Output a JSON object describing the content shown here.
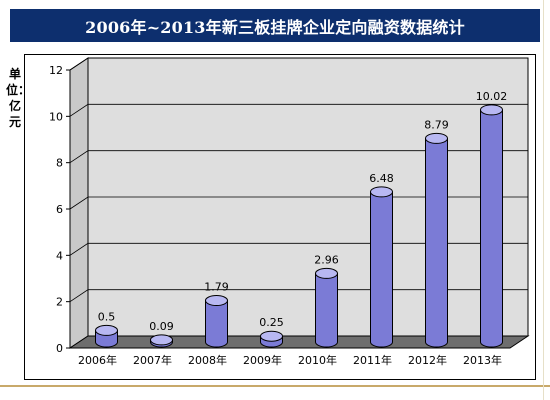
{
  "title": "2006年~2013年新三板挂牌企业定向融资数据统计",
  "colors": {
    "title_bg": "#0d2f6e",
    "bar_side": "#7b7bd6",
    "bar_top": "#b8b8f2",
    "plot_back": "#dedede",
    "floor": "#6e6e6e"
  },
  "chart_data": {
    "type": "bar",
    "title": "2006年~2013年新三板挂牌企业定向融资数据统计",
    "ylabel": "单位：亿元",
    "xlabel": "",
    "categories": [
      "2006年",
      "2007年",
      "2008年",
      "2009年",
      "2010年",
      "2011年",
      "2012年",
      "2013年"
    ],
    "values": [
      0.5,
      0.09,
      1.79,
      0.25,
      2.96,
      6.48,
      8.79,
      10.02
    ],
    "data_labels": [
      "0.5",
      "0.09",
      "1.79",
      "0.25",
      "2.96",
      "6.48",
      "8.79",
      "10.02"
    ],
    "ylim": [
      0,
      12
    ],
    "yticks": [
      0,
      2,
      4,
      6,
      8,
      10,
      12
    ],
    "grid": true,
    "legend": "none",
    "style": "3d-cylinder"
  }
}
